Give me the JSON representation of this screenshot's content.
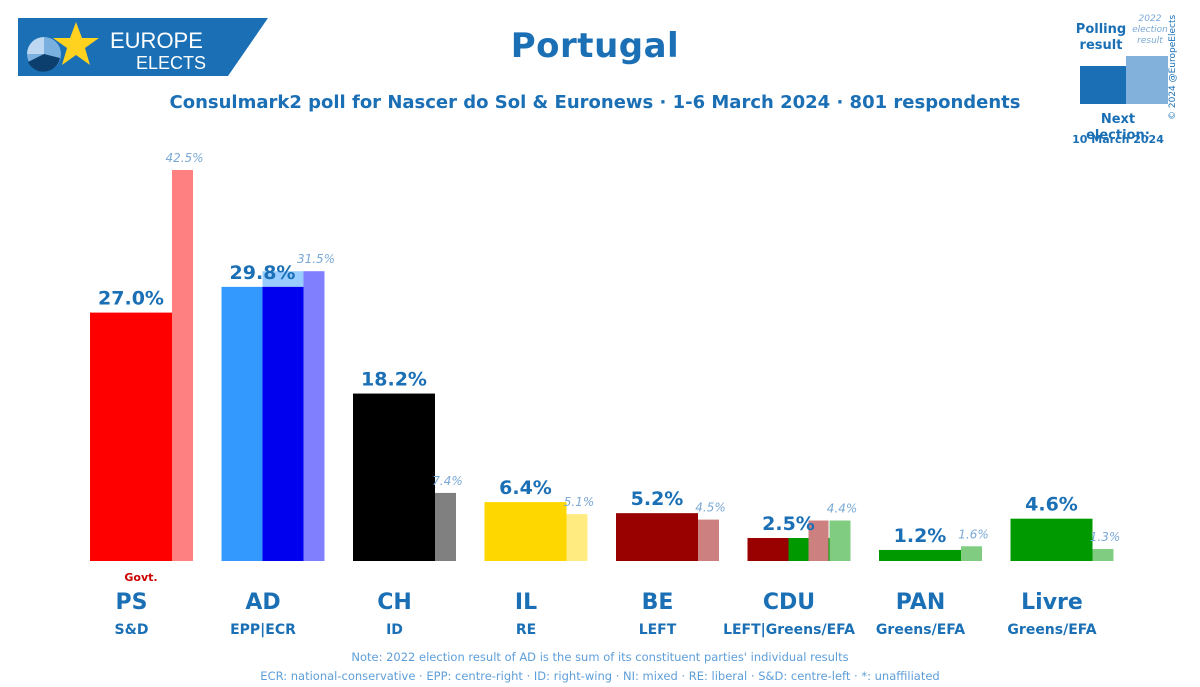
{
  "logo": {
    "line1": "EUROPE",
    "line2": "ELECTS"
  },
  "header": {
    "title": "Portugal",
    "subtitle": "Consulmark2 poll for Nascer do Sol & Euronews · 1-6 March 2024 · 801 respondents"
  },
  "legend": {
    "polling_label": "Polling result",
    "previous_label": "2022 election result",
    "next_election_label": "Next election:",
    "next_election_date": "10 March 2024",
    "copyright": "© 2024 @EuropeElects"
  },
  "notes": {
    "line1": "Note: 2022 election result of AD is the sum of its constituent parties' individual results",
    "line2": "ECR: national-conservative · EPP: centre-right · ID: right-wing · NI: mixed · RE: liberal · S&D: centre-left · *: unaffiliated"
  },
  "chart_data": {
    "type": "bar",
    "title": "Portugal",
    "ylim": [
      0,
      45
    ],
    "series": [
      {
        "name": "Polling result",
        "values": [
          27.0,
          29.8,
          18.2,
          6.4,
          5.2,
          2.5,
          1.2,
          4.6
        ]
      },
      {
        "name": "2022 election result",
        "values": [
          42.5,
          31.5,
          7.4,
          5.1,
          4.5,
          4.4,
          1.6,
          1.3
        ]
      }
    ],
    "parties": [
      {
        "name": "PS",
        "group": "S&D",
        "poll": 27.0,
        "poll_label": "27.0%",
        "prev": 42.5,
        "prev_label": "42.5%",
        "poll_color": "#ff0000",
        "prev_color": "#ff8080",
        "note": "Govt."
      },
      {
        "name": "AD",
        "group": "EPP|ECR",
        "poll": 29.8,
        "poll_label": "29.8%",
        "prev": 31.5,
        "prev_label": "31.5%",
        "poll_segments": [
          {
            "color": "#3399ff",
            "value": 29.8
          },
          {
            "color": "#0000ee",
            "value": 29.8
          }
        ],
        "poll_cap": {
          "color": "#99ccff",
          "value": 31.5
        },
        "prev_color": "#8080ff"
      },
      {
        "name": "CH",
        "group": "ID",
        "poll": 18.2,
        "poll_label": "18.2%",
        "prev": 7.4,
        "prev_label": "7.4%",
        "poll_color": "#000000",
        "prev_color": "#808080"
      },
      {
        "name": "IL",
        "group": "RE",
        "poll": 6.4,
        "poll_label": "6.4%",
        "prev": 5.1,
        "prev_label": "5.1%",
        "poll_color": "#ffd700",
        "prev_color": "#ffeb80"
      },
      {
        "name": "BE",
        "group": "LEFT",
        "poll": 5.2,
        "poll_label": "5.2%",
        "prev": 4.5,
        "prev_label": "4.5%",
        "poll_color": "#990000",
        "prev_color": "#cc8080"
      },
      {
        "name": "CDU",
        "group": "LEFT|Greens/EFA",
        "poll": 2.5,
        "poll_label": "2.5%",
        "prev": 4.4,
        "prev_label": "4.4%",
        "poll_segments": [
          {
            "color": "#990000",
            "value": 2.5
          },
          {
            "color": "#009900",
            "value": 2.5
          }
        ],
        "prev_segments": [
          {
            "color": "#cc8080",
            "value": 4.4
          },
          {
            "color": "#80cc80",
            "value": 4.4
          }
        ]
      },
      {
        "name": "PAN",
        "group": "Greens/EFA",
        "poll": 1.2,
        "poll_label": "1.2%",
        "prev": 1.6,
        "prev_label": "1.6%",
        "poll_color": "#009900",
        "prev_color": "#80cc80"
      },
      {
        "name": "Livre",
        "group": "Greens/EFA",
        "poll": 4.6,
        "poll_label": "4.6%",
        "prev": 1.3,
        "prev_label": "1.3%",
        "poll_color": "#009900",
        "prev_color": "#80cc80"
      }
    ]
  }
}
